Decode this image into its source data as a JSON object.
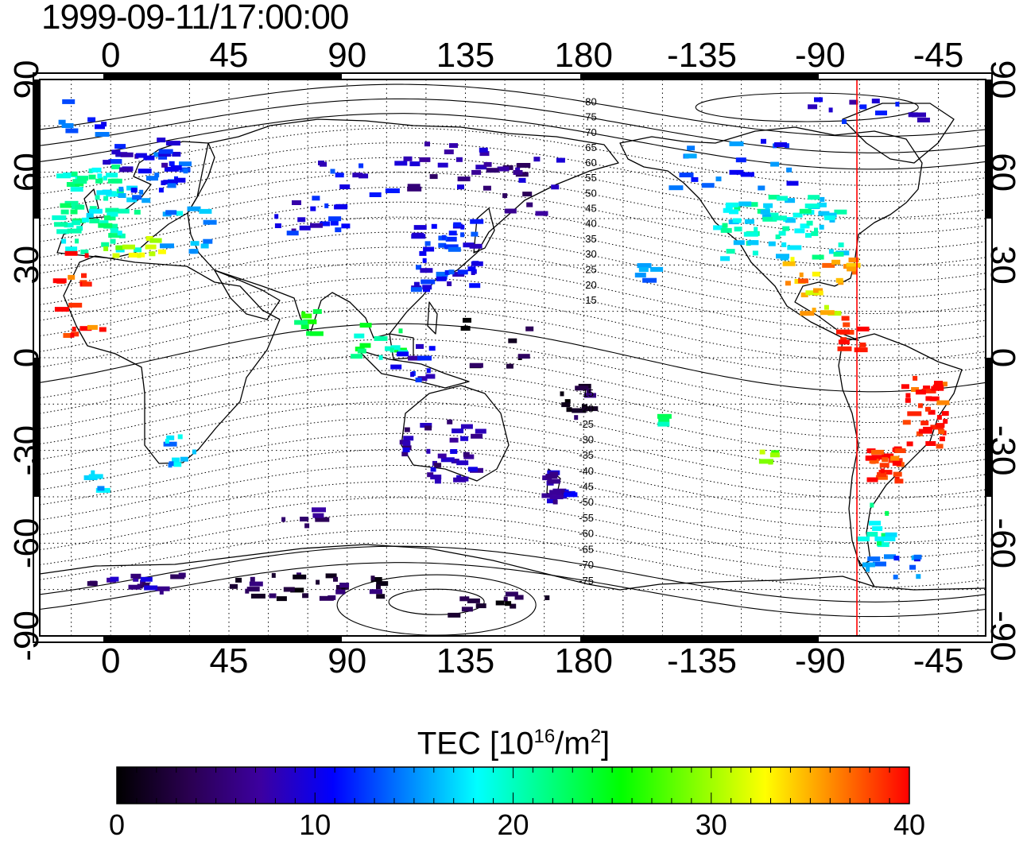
{
  "title": "1999-09-11/17:00:00",
  "map": {
    "lon_ticks": [
      "0",
      "45",
      "90",
      "135",
      "180",
      "-135",
      "-90",
      "-45"
    ],
    "lat_ticks": [
      "90",
      "60",
      "30",
      "0",
      "-30",
      "-60",
      "-90"
    ],
    "mlat_labels_north": [
      "80",
      "75",
      "70",
      "65",
      "60",
      "55",
      "50",
      "45",
      "40",
      "35",
      "30",
      "25",
      "20",
      "15"
    ],
    "mlat_labels_south": [
      "-15",
      "-20",
      "-25",
      "-30",
      "-35",
      "-40",
      "-45",
      "-50",
      "-55",
      "-60",
      "-65",
      "-70",
      "-75"
    ],
    "terminator_longitude": -76,
    "grid": "dotted",
    "coastlines": true
  },
  "colorbar": {
    "title_prefix": "TEC  [10",
    "title_sup1": "16",
    "title_mid": "/m",
    "title_sup2": "2",
    "title_suffix": "]",
    "min": 0,
    "max": 40,
    "tick_labels": [
      "0",
      "10",
      "20",
      "30",
      "40"
    ],
    "colors": [
      "#000000",
      "#2a0050",
      "#3c00a0",
      "#0000ff",
      "#0080ff",
      "#00ffff",
      "#00ff80",
      "#00ff00",
      "#80ff00",
      "#ffff00",
      "#ff8000",
      "#ff0000"
    ]
  },
  "tec_regions": [
    {
      "lon": -5,
      "lat": 48,
      "tec": 20,
      "n": 70,
      "dlon": 16,
      "dlat": 14
    },
    {
      "lon": 15,
      "lat": 58,
      "tec": 13,
      "n": 25,
      "dlon": 14,
      "dlat": 8
    },
    {
      "lon": 12,
      "lat": 66,
      "tec": 10,
      "n": 18,
      "dlon": 14,
      "dlat": 6
    },
    {
      "lon": 10,
      "lat": 36,
      "tec": 30,
      "n": 12,
      "dlon": 12,
      "dlat": 3
    },
    {
      "lon": 30,
      "lat": 42,
      "tec": 16,
      "n": 12,
      "dlon": 10,
      "dlat": 8
    },
    {
      "lon": -10,
      "lat": 78,
      "tec": 12,
      "n": 8,
      "dlon": 14,
      "dlat": 6
    },
    {
      "lon": -15,
      "lat": 20,
      "tec": 39,
      "n": 12,
      "dlon": 6,
      "dlat": 14
    },
    {
      "lon": -10,
      "lat": 7,
      "tec": 38,
      "n": 6,
      "dlon": 8,
      "dlat": 4
    },
    {
      "lon": 77,
      "lat": 46,
      "tec": 10,
      "n": 18,
      "dlon": 14,
      "dlat": 6
    },
    {
      "lon": 95,
      "lat": 58,
      "tec": 11,
      "n": 10,
      "dlon": 16,
      "dlat": 6
    },
    {
      "lon": 128,
      "lat": 33,
      "tec": 11,
      "n": 45,
      "dlon": 12,
      "dlat": 12
    },
    {
      "lon": 135,
      "lat": 62,
      "tec": 7,
      "n": 25,
      "dlon": 25,
      "dlat": 8
    },
    {
      "lon": 160,
      "lat": 55,
      "tec": 7,
      "n": 12,
      "dlon": 12,
      "dlat": 10
    },
    {
      "lon": 75,
      "lat": 12,
      "tec": 24,
      "n": 8,
      "dlon": 4,
      "dlat": 5
    },
    {
      "lon": 102,
      "lat": 5,
      "tec": 22,
      "n": 14,
      "dlon": 10,
      "dlat": 6
    },
    {
      "lon": 115,
      "lat": -2,
      "tec": 10,
      "n": 12,
      "dlon": 10,
      "dlat": 6
    },
    {
      "lon": 148,
      "lat": 5,
      "tec": 2,
      "n": 10,
      "dlon": 14,
      "dlat": 8
    },
    {
      "lon": 175,
      "lat": -15,
      "tec": 3,
      "n": 12,
      "dlon": 8,
      "dlat": 6
    },
    {
      "lon": 125,
      "lat": -30,
      "tec": 7,
      "n": 35,
      "dlon": 16,
      "dlat": 10
    },
    {
      "lon": 170,
      "lat": -42,
      "tec": 8,
      "n": 20,
      "dlon": 6,
      "dlat": 6
    },
    {
      "lon": 27,
      "lat": -30,
      "tec": 16,
      "n": 10,
      "dlon": 6,
      "dlat": 6
    },
    {
      "lon": -5,
      "lat": -40,
      "tec": 16,
      "n": 5,
      "dlon": 4,
      "dlat": 3
    },
    {
      "lon": 70,
      "lat": -52,
      "tec": 6,
      "n": 6,
      "dlon": 14,
      "dlat": 3
    },
    {
      "lon": 75,
      "lat": -74,
      "tec": 3,
      "n": 30,
      "dlon": 30,
      "dlat": 4
    },
    {
      "lon": 10,
      "lat": -73,
      "tec": 7,
      "n": 16,
      "dlon": 20,
      "dlat": 3
    },
    {
      "lon": 150,
      "lat": -80,
      "tec": 2,
      "n": 12,
      "dlon": 20,
      "dlat": 4
    },
    {
      "lon": -105,
      "lat": 42,
      "tec": 19,
      "n": 70,
      "dlon": 24,
      "dlat": 10
    },
    {
      "lon": -120,
      "lat": 62,
      "tec": 13,
      "n": 20,
      "dlon": 25,
      "dlat": 8
    },
    {
      "lon": -75,
      "lat": 80,
      "tec": 10,
      "n": 12,
      "dlon": 25,
      "dlat": 4
    },
    {
      "lon": -90,
      "lat": 28,
      "tec": 35,
      "n": 16,
      "dlon": 14,
      "dlat": 4
    },
    {
      "lon": -90,
      "lat": 18,
      "tec": 33,
      "n": 10,
      "dlon": 6,
      "dlat": 5
    },
    {
      "lon": -77,
      "lat": 5,
      "tec": 39,
      "n": 10,
      "dlon": 5,
      "dlat": 8
    },
    {
      "lon": -50,
      "lat": -18,
      "tec": 39,
      "n": 35,
      "dlon": 8,
      "dlat": 12
    },
    {
      "lon": -65,
      "lat": -35,
      "tec": 39,
      "n": 25,
      "dlon": 6,
      "dlat": 6
    },
    {
      "lon": -68,
      "lat": -55,
      "tec": 20,
      "n": 14,
      "dlon": 6,
      "dlat": 8
    },
    {
      "lon": -62,
      "lat": -68,
      "tec": 13,
      "n": 12,
      "dlon": 10,
      "dlat": 4
    },
    {
      "lon": -155,
      "lat": 27,
      "tec": 15,
      "n": 6,
      "dlon": 4,
      "dlat": 3
    },
    {
      "lon": -110,
      "lat": -32,
      "tec": 28,
      "n": 5,
      "dlon": 4,
      "dlat": 2
    },
    {
      "lon": -150,
      "lat": -20,
      "tec": 22,
      "n": 4,
      "dlon": 3,
      "dlat": 3
    }
  ]
}
